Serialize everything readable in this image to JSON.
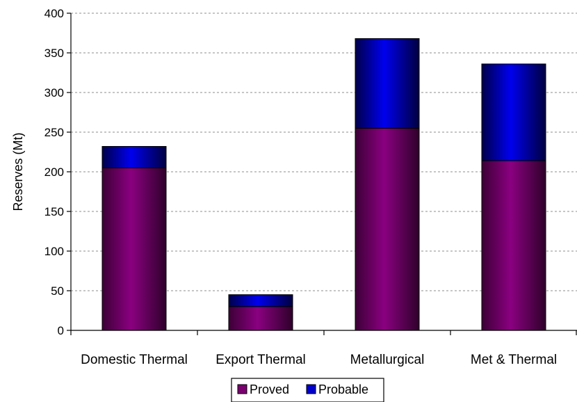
{
  "chart_data": {
    "type": "bar",
    "stacked": true,
    "title": "",
    "xlabel": "",
    "ylabel": "Reserves (Mt)",
    "ylim": [
      0,
      400
    ],
    "yticks": [
      0,
      50,
      100,
      150,
      200,
      250,
      300,
      350,
      400
    ],
    "grid": "horizontal dashed",
    "legend_position": "bottom",
    "categories": [
      "Domestic Thermal",
      "Export Thermal",
      "Metallurgical",
      "Met & Thermal"
    ],
    "series": [
      {
        "name": "Proved",
        "values": [
          205,
          30,
          255,
          214
        ],
        "color": "#7a0070"
      },
      {
        "name": "Probable",
        "values": [
          27,
          15,
          113,
          122
        ],
        "color": "#0000cc"
      }
    ]
  }
}
